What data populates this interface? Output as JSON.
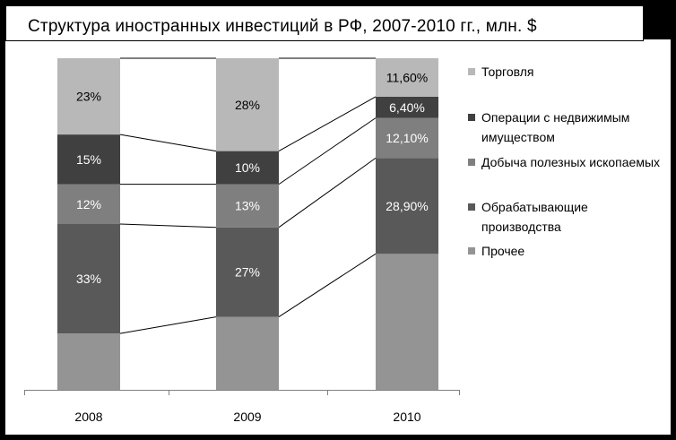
{
  "chart_data": {
    "type": "stacked-bar",
    "title": "Структура иностранных инвестиций в РФ, 2007-2010 гг., млн. $",
    "categories": [
      "2008",
      "2009",
      "2010"
    ],
    "series": [
      {
        "name": "Прочее",
        "values": [
          17,
          22,
          41
        ],
        "labels": [
          "",
          "",
          ""
        ],
        "color": "#949494"
      },
      {
        "name": "Обрабатывающие производства",
        "values": [
          33,
          27,
          28.9
        ],
        "labels": [
          "33%",
          "27%",
          "28,90%"
        ],
        "color": "#595959"
      },
      {
        "name": "Добыча полезных ископаемых",
        "values": [
          12,
          13,
          12.1
        ],
        "labels": [
          "12%",
          "13%",
          "12,10%"
        ],
        "color": "#7f7f7f"
      },
      {
        "name": "Операции с недвижимым имуществом",
        "values": [
          15,
          10,
          6.4
        ],
        "labels": [
          "15%",
          "10%",
          "6,40%"
        ],
        "color": "#404040"
      },
      {
        "name": "Торговля",
        "values": [
          23,
          28,
          11.6
        ],
        "labels": [
          "23%",
          "28%",
          "11,60%"
        ],
        "color": "#b8b8b8"
      }
    ],
    "ylim": [
      0,
      100
    ],
    "series_lines": true,
    "legend_position": "right",
    "grid": false
  }
}
